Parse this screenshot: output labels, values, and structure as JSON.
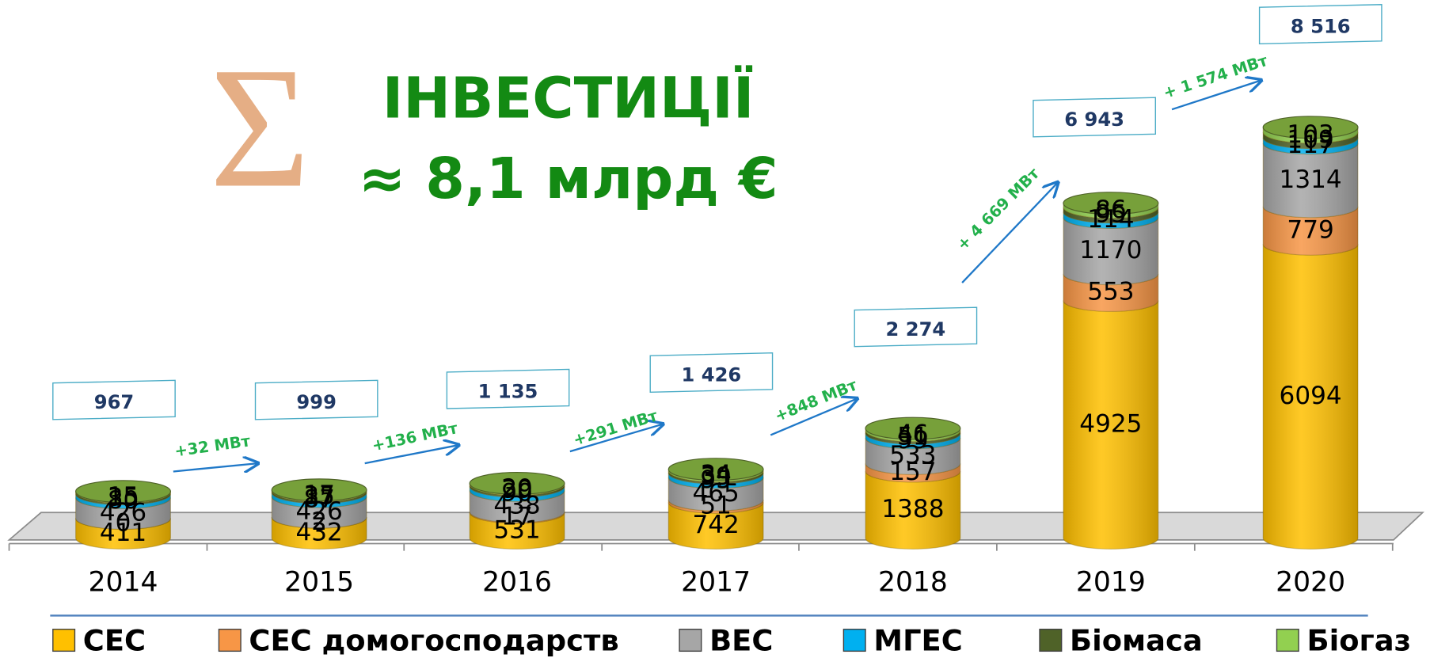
{
  "chart_data": {
    "type": "cylinder_stacked",
    "symbol": "Σ",
    "title": "ІНВЕСТИЦІЇ",
    "subtitle": "≈ 8,1 млрд €",
    "categories": [
      "2014",
      "2015",
      "2016",
      "2017",
      "2018",
      "2019",
      "2020"
    ],
    "series": [
      {
        "name": "СЕС",
        "color": "#ffc000",
        "values": [
          411,
          432,
          531,
          742,
          1388,
          4925,
          6094
        ]
      },
      {
        "name": "СЕС домогосподарств",
        "color": "#f79646",
        "values": [
          0,
          2,
          17,
          51,
          157,
          553,
          779
        ]
      },
      {
        "name": "ВЕС",
        "color": "#a6a6a6",
        "values": [
          426,
          426,
          438,
          465,
          533,
          1170,
          1314
        ]
      },
      {
        "name": "МГЕС",
        "color": "#00b0f0",
        "values": [
          80,
          87,
          90,
          95,
          99,
          114,
          117
        ]
      },
      {
        "name": "Біомаса",
        "color": "#4f6228",
        "values": [
          35,
          35,
          39,
          39,
          51,
          95,
          109
        ]
      },
      {
        "name": "Біогаз",
        "color": "#92d050",
        "values": [
          15,
          17,
          20,
          34,
          46,
          86,
          103
        ]
      }
    ],
    "totals": [
      967,
      999,
      1135,
      1426,
      2274,
      6943,
      8516
    ],
    "total_labels": [
      "967",
      "999",
      "1 135",
      "1 426",
      "2 274",
      "6 943",
      "8 516"
    ],
    "increments": [
      "+32 МВт",
      "+136 МВт",
      "+291 МВт",
      "+848 МВт",
      "+ 4 669 МВт",
      "+ 1 574 МВт"
    ],
    "ylim": [
      0,
      9000
    ]
  }
}
